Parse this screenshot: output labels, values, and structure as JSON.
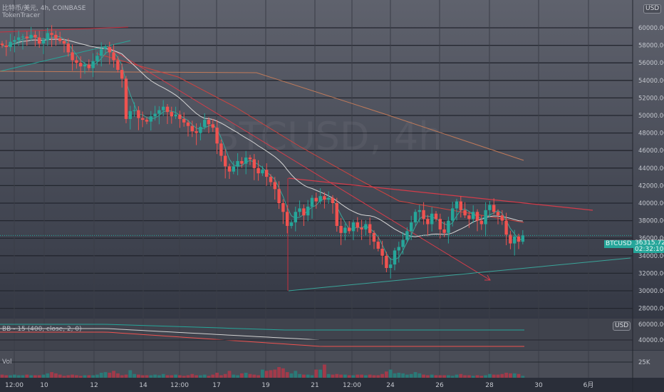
{
  "header": {
    "symbol_line": "比特币/美元, 4h, COINBASE",
    "indicator_name": "TokenTracer",
    "watermark": "BTCUSD, 4h"
  },
  "currency_badge": "USD",
  "price_axis": {
    "ticks": [
      "60000.00",
      "58000.00",
      "56000.00",
      "54000.00",
      "52000.00",
      "50000.00",
      "48000.00",
      "46000.00",
      "44000.00",
      "42000.00",
      "40000.00",
      "38000.00",
      "36000.00",
      "34000.00",
      "32000.00",
      "30000.00",
      "28000.00"
    ]
  },
  "last_price": {
    "symbol": "BTCUSD",
    "price": "36315.72",
    "countdown": "02:32:10"
  },
  "bb_pane": {
    "legend": "BB - 15 (400, close, 2, 0)",
    "tick": "40000.00",
    "top_tick": "60000.00",
    "badge": "USD"
  },
  "vol_pane": {
    "legend": "Vol",
    "tick": "25K"
  },
  "time_axis": {
    "ticks": [
      "12:00",
      "10",
      "12",
      "14",
      "12:00",
      "17",
      "19",
      "21",
      "12:00",
      "24",
      "26",
      "28",
      "30",
      "6月"
    ]
  },
  "colors": {
    "up": "#26a69a",
    "down": "#ef5350",
    "grid": "#23262e"
  },
  "chart_data": {
    "type": "candlestick",
    "interval": "4h",
    "ylim": [
      27000,
      62000
    ],
    "closes": [
      58.0,
      57.8,
      58.4,
      58.6,
      58.9,
      59.0,
      58.8,
      59.2,
      58.9,
      58.2,
      58.6,
      59.4,
      59.2,
      58.8,
      58.5,
      58.2,
      57.2,
      56.3,
      56.0,
      55.6,
      55.8,
      55.4,
      56.2,
      56.8,
      57.6,
      57.8,
      57.2,
      56.3,
      55.2,
      54.2,
      49.6,
      50.5,
      50.6,
      49.7,
      49.5,
      49.3,
      49.9,
      50.2,
      50.6,
      51.0,
      50.4,
      49.9,
      50.1,
      49.6,
      49.2,
      48.8,
      48.2,
      48.0,
      48.7,
      49.5,
      49.0,
      48.6,
      46.8,
      45.4,
      44.2,
      43.6,
      44.2,
      44.8,
      44.5,
      45.2,
      45.0,
      44.0,
      43.4,
      43.8,
      43.0,
      42.4,
      41.6,
      40.0,
      39.0,
      37.4,
      37.8,
      39.0,
      39.4,
      38.6,
      39.6,
      40.6,
      40.2,
      40.8,
      40.4,
      40.6,
      40.0,
      37.4,
      36.6,
      37.2,
      36.8,
      37.8,
      37.2,
      37.0,
      37.6,
      36.6,
      35.6,
      34.8,
      34.0,
      32.6,
      33.0,
      34.6,
      35.0,
      35.8,
      36.8,
      37.8,
      39.0,
      39.2,
      38.2,
      37.6,
      38.8,
      38.2,
      37.0,
      36.6,
      38.0,
      39.4,
      40.2,
      39.2,
      38.6,
      38.2,
      39.0,
      38.0,
      37.6,
      39.2,
      39.8,
      39.0,
      38.6,
      38.0,
      36.4,
      35.4,
      36.2,
      35.6,
      36.315
    ],
    "closes_unit": "thousand USD",
    "volumes_k": [
      5,
      4,
      4,
      5,
      4,
      4,
      5,
      4,
      4,
      4,
      5,
      7,
      9,
      7,
      5,
      3,
      4,
      5,
      4,
      3,
      4,
      4,
      4,
      5,
      8,
      9,
      8,
      11,
      7,
      4,
      5,
      12,
      6,
      5,
      4,
      4,
      4,
      5,
      4,
      6,
      4,
      4,
      5,
      4,
      3,
      4,
      6,
      4,
      4,
      5,
      3,
      5,
      8,
      4,
      6,
      11,
      5,
      4,
      7,
      8,
      6,
      5,
      4,
      13,
      11,
      12,
      13,
      17,
      15,
      9,
      7,
      11,
      6,
      5,
      5,
      4,
      13,
      13,
      21,
      6,
      5,
      6,
      5,
      5,
      4,
      4,
      5,
      5,
      4,
      5,
      4,
      4,
      6,
      10,
      13,
      7,
      8,
      7,
      5,
      6,
      9,
      7,
      5,
      4,
      5,
      4,
      4,
      4,
      4,
      3,
      5,
      6,
      4,
      4,
      3,
      4,
      3,
      4,
      6,
      5,
      5,
      6,
      8,
      7,
      7,
      6,
      3
    ]
  }
}
